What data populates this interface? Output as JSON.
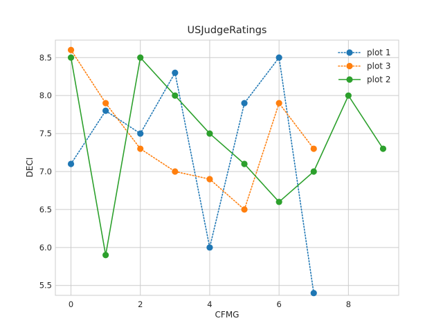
{
  "chart_data": {
    "type": "line",
    "title": "USJudgeRatings",
    "xlabel": "CFMG",
    "ylabel": "DECI",
    "xlim": [
      -0.45,
      9.45
    ],
    "ylim": [
      5.37,
      8.73
    ],
    "xticks": [
      0,
      2,
      4,
      6,
      8
    ],
    "xtick_labels": [
      "0",
      "2",
      "4",
      "6",
      "8"
    ],
    "yticks": [
      5.5,
      6.0,
      6.5,
      7.0,
      7.5,
      8.0,
      8.5
    ],
    "ytick_labels": [
      "5.5",
      "6.0",
      "6.5",
      "7.0",
      "7.5",
      "8.0",
      "8.5"
    ],
    "grid": true,
    "legend_position": "top-right",
    "series": [
      {
        "name": "plot 1",
        "color": "#1f77b4",
        "linestyle": "dotted",
        "marker": "circle",
        "x": [
          0,
          1,
          2,
          3,
          4,
          5,
          6,
          7
        ],
        "y": [
          7.1,
          7.8,
          7.5,
          8.3,
          6.0,
          7.9,
          8.5,
          5.4
        ]
      },
      {
        "name": "plot 3",
        "color": "#ff7f0e",
        "linestyle": "dotted",
        "marker": "circle",
        "x": [
          0,
          1,
          2,
          3,
          4,
          5,
          6,
          7
        ],
        "y": [
          8.6,
          7.9,
          7.3,
          7.0,
          6.9,
          6.5,
          7.9,
          7.3
        ]
      },
      {
        "name": "plot 2",
        "color": "#2ca02c",
        "linestyle": "solid",
        "marker": "circle",
        "x": [
          0,
          1,
          2,
          3,
          4,
          5,
          6,
          7,
          8,
          9
        ],
        "y": [
          8.5,
          5.9,
          8.5,
          8.0,
          7.5,
          7.1,
          6.6,
          7.0,
          8.0,
          7.3
        ]
      }
    ]
  }
}
